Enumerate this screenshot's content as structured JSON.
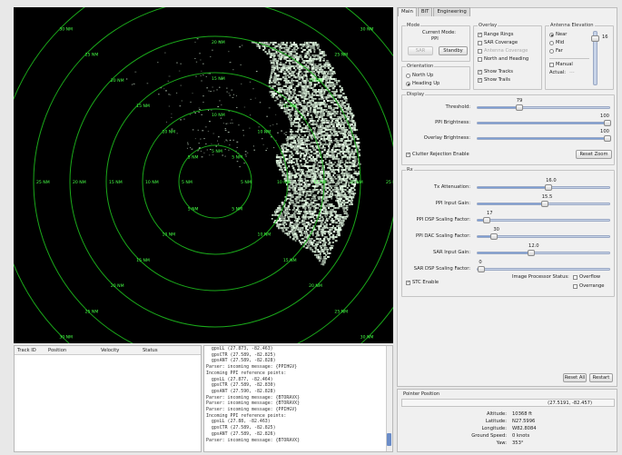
{
  "radar": {
    "range_labels": [
      "5 NM",
      "10 NM",
      "15 NM",
      "20 NM",
      "25 NM",
      "30 NM"
    ],
    "colors": {
      "ring": "#1aa81a",
      "label": "#46ff46",
      "returns": "#e8ffe8"
    }
  },
  "tabs": [
    "Main",
    "BIT",
    "Engineering"
  ],
  "mode": {
    "title": "Mode",
    "current_label": "Current Mode:",
    "current_value": "PPI",
    "sar_button": "SAR",
    "standby_button": "Standby"
  },
  "overlay": {
    "title": "Overlay",
    "items": [
      {
        "label": "Range Rings",
        "checked": true,
        "enabled": true
      },
      {
        "label": "SAR Coverage",
        "checked": false,
        "enabled": true
      },
      {
        "label": "Antenna Coverage",
        "checked": false,
        "enabled": false
      },
      {
        "label": "North and Heading",
        "checked": false,
        "enabled": true
      },
      {
        "label": "Show Tracks",
        "checked": true,
        "enabled": true
      },
      {
        "label": "Show Trails",
        "checked": true,
        "enabled": true
      }
    ]
  },
  "antenna": {
    "title": "Antenna Elevation",
    "options": [
      "Near",
      "Mid",
      "Far"
    ],
    "selected": "Near",
    "manual_label": "Manual",
    "actual_label": "Actual:",
    "actual_value": "---",
    "slider_value": "16"
  },
  "orientation": {
    "title": "Orientation",
    "options": [
      "North Up",
      "Heading Up"
    ],
    "selected": "Heading Up"
  },
  "display": {
    "title": "Display",
    "threshold": {
      "label": "Threshold:",
      "value": "79",
      "max": 255
    },
    "ppi_brightness": {
      "label": "PPI Brightness:",
      "value": "100",
      "max": 100
    },
    "overlay_brightness": {
      "label": "Overlay Brightness:",
      "value": "100",
      "max": 100
    },
    "clutter_label": "Clutter Rejection Enable",
    "clutter_checked": true,
    "reset_zoom": "Reset Zoom"
  },
  "rx": {
    "title": "Rx",
    "sliders": [
      {
        "label": "Tx Attenuation:",
        "value": "16.0",
        "fraction": 0.53
      },
      {
        "label": "PPI Input Gain:",
        "value": "15.5",
        "fraction": 0.5
      },
      {
        "label": "PPI DSP Scaling Factor:",
        "value": "17",
        "fraction": 0.07
      },
      {
        "label": "PPI DAC Scaling Factor:",
        "value": "30",
        "fraction": 0.12
      },
      {
        "label": "SAR Input Gain:",
        "value": "12.0",
        "fraction": 0.4
      },
      {
        "label": "SAR DSP Scaling Factor:",
        "value": "0",
        "fraction": 0.0
      }
    ],
    "stc_label": "STC Enable",
    "stc_checked": true,
    "image_status_label": "Image Processor Status:",
    "overflow_label": "Overflow",
    "overrange_label": "Overrange"
  },
  "buttons": {
    "reset_all": "Reset All",
    "restart": "Restart"
  },
  "pointer": {
    "title": "Pointer Position",
    "coords": "(27.5191, -82.457)",
    "rows": [
      {
        "label": "Altitude:",
        "value": "10368 ft"
      },
      {
        "label": "Latitude:",
        "value": "N27.5996"
      },
      {
        "label": "Longitude:",
        "value": "W82.8084"
      },
      {
        "label": "Ground Speed:",
        "value": "0 knots"
      },
      {
        "label": "Yaw:",
        "value": "353°"
      }
    ]
  },
  "track_table": {
    "columns": [
      "Track ID",
      "Position",
      "Velocity",
      "Status"
    ]
  },
  "log": {
    "lines": [
      "  gpsLL (27.873, -82.463)",
      "  gpsCTR (27.589, -82.825)",
      "  gpsANT (27.589, -82.828)",
      "Parser: incoming message: {PPIHGV}",
      "Incoming PPI reference points:",
      "  gpsLL (27.877, -82.464)",
      "  gpsCTR (27.589, -82.830)",
      "  gpsANT (27.590, -82.828)",
      "Parser: incoming message: {BTORAVX}",
      "Parser: incoming message: {BTORAVX}",
      "Parser: incoming message: {PPIHGV}",
      "Incoming PPI reference points:",
      "  gpsLL (27.88, -82.463)",
      "  gpsCTR (27.589, -82.825)",
      "  gpsANT (27.589, -82.826)",
      "Parser: incoming message: {BTORAVX}"
    ]
  }
}
